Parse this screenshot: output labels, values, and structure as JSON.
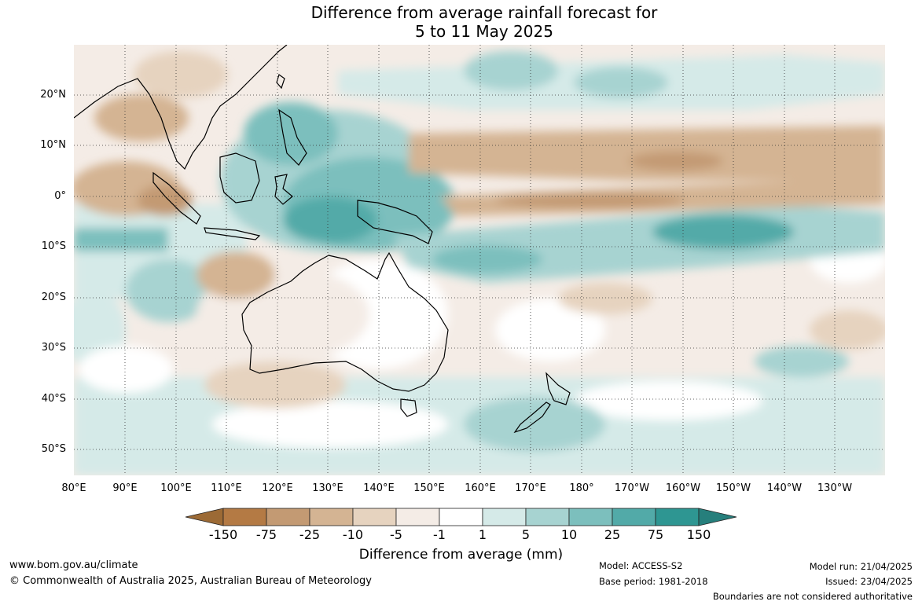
{
  "title_line1": "Difference from average rainfall forecast for",
  "title_line2": "5 to 11 May 2025",
  "map": {
    "lat_labels": [
      "20°N",
      "10°N",
      "0°",
      "10°S",
      "20°S",
      "30°S",
      "40°S",
      "50°S"
    ],
    "lon_labels": [
      "80°E",
      "90°E",
      "100°E",
      "110°E",
      "120°E",
      "130°E",
      "140°E",
      "150°E",
      "160°E",
      "170°E",
      "180°",
      "170°W",
      "160°W",
      "150°W",
      "140°W",
      "130°W"
    ]
  },
  "colorbar": {
    "labels": [
      "-150",
      "-75",
      "-25",
      "-10",
      "-5",
      "-1",
      "1",
      "5",
      "10",
      "25",
      "75",
      "150"
    ],
    "colors": [
      "#9c6a35",
      "#b47a44",
      "#c39a73",
      "#d4b493",
      "#e6d3bf",
      "#f4ece6",
      "#ffffff",
      "#d5eae8",
      "#a7d3d1",
      "#7cbfbd",
      "#52aaa8",
      "#2e9692",
      "#267f7c"
    ],
    "title": "Difference from average (mm)"
  },
  "footer": {
    "website": "www.bom.gov.au/climate",
    "copyright": "© Commonwealth of Australia 2025, Australian Bureau of Meteorology",
    "model": "Model: ACCESS-S2",
    "base_period": "Base period: 1981-2018",
    "model_run": "Model run: 21/04/2025",
    "issued": "Issued: 23/04/2025",
    "disclaimer": "Boundaries are not considered authoritative"
  }
}
